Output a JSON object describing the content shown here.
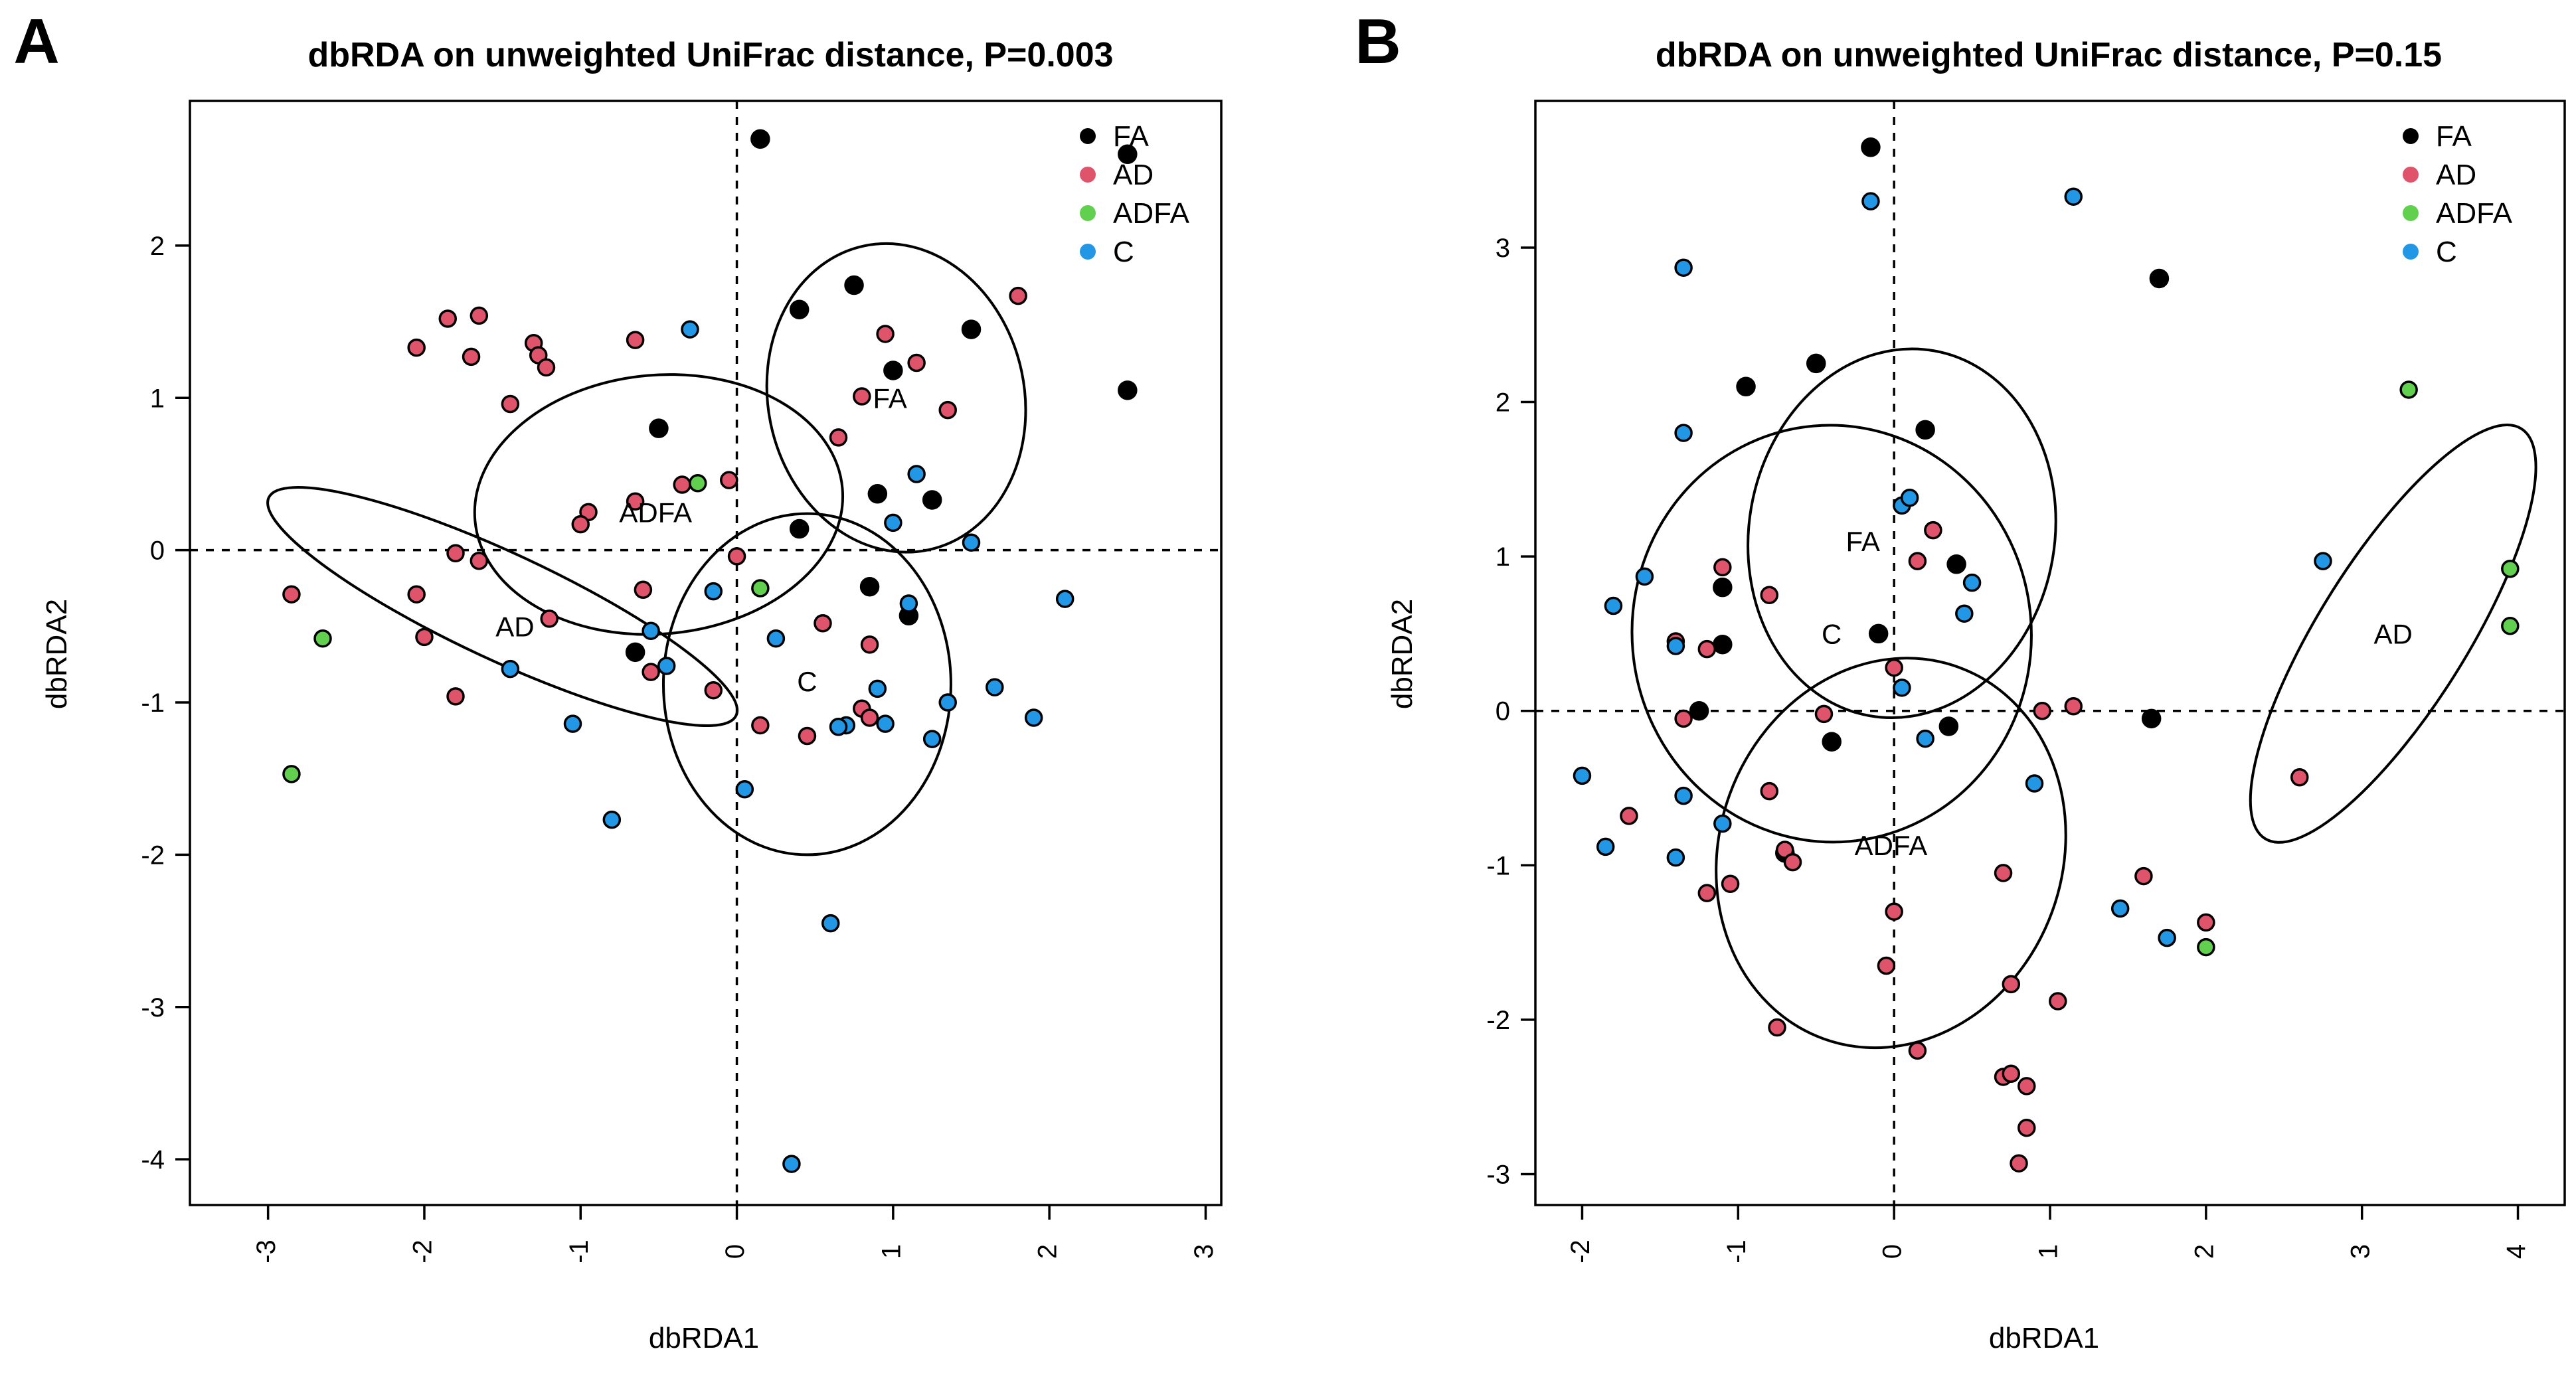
{
  "colors": {
    "FA": "#000000",
    "AD": "#DF536B",
    "ADFA": "#61D04F",
    "C": "#2297E6"
  },
  "chart_data": [
    {
      "type": "scatter",
      "panel_label": "A",
      "title": "dbRDA on unweighted UniFrac distance, P=0.003",
      "xlabel": "dbRDA1",
      "ylabel": "dbRDA2",
      "xlim": [
        -3.5,
        3.1
      ],
      "ylim": [
        -4.3,
        2.95
      ],
      "xticks": [
        -3,
        -2,
        -1,
        0,
        1,
        2,
        3
      ],
      "xtick_labels": [
        "-3",
        "-2",
        "-1",
        "0",
        "1",
        "2",
        "3"
      ],
      "yticks": [
        -4,
        -3,
        -2,
        -1,
        0,
        1,
        2
      ],
      "ytick_labels": [
        "-4",
        "-3",
        "-2",
        "-1",
        "0",
        "1",
        "2"
      ],
      "legend": [
        "FA",
        "AD",
        "ADFA",
        "C"
      ],
      "legend_position": "top-right",
      "series": [
        {
          "name": "FA",
          "points": [
            [
              0.15,
              2.7
            ],
            [
              2.5,
              2.6
            ],
            [
              0.4,
              1.58
            ],
            [
              0.75,
              1.74
            ],
            [
              1.5,
              1.45
            ],
            [
              1.0,
              1.18
            ],
            [
              2.5,
              1.05
            ],
            [
              -0.5,
              0.8
            ],
            [
              0.9,
              0.37
            ],
            [
              1.25,
              0.33
            ],
            [
              0.4,
              0.14
            ],
            [
              0.85,
              -0.24
            ],
            [
              1.1,
              -0.43
            ],
            [
              -0.65,
              -0.67
            ]
          ]
        },
        {
          "name": "AD",
          "points": [
            [
              -1.85,
              1.52
            ],
            [
              -1.65,
              1.54
            ],
            [
              -2.05,
              1.33
            ],
            [
              -1.7,
              1.27
            ],
            [
              -1.3,
              1.36
            ],
            [
              -1.27,
              1.28
            ],
            [
              -1.22,
              1.2
            ],
            [
              -0.65,
              1.38
            ],
            [
              -1.45,
              0.96
            ],
            [
              0.95,
              1.42
            ],
            [
              1.15,
              1.23
            ],
            [
              1.8,
              1.67
            ],
            [
              0.8,
              1.01
            ],
            [
              1.35,
              0.92
            ],
            [
              0.65,
              0.74
            ],
            [
              -0.35,
              0.43
            ],
            [
              -0.05,
              0.46
            ],
            [
              -0.65,
              0.32
            ],
            [
              -0.95,
              0.25
            ],
            [
              -1.0,
              0.17
            ],
            [
              -1.8,
              -0.02
            ],
            [
              -1.65,
              -0.07
            ],
            [
              -2.85,
              -0.29
            ],
            [
              -2.05,
              -0.29
            ],
            [
              -2.0,
              -0.57
            ],
            [
              -1.2,
              -0.45
            ],
            [
              -0.6,
              -0.26
            ],
            [
              -0.55,
              -0.8
            ],
            [
              -0.15,
              -0.92
            ],
            [
              0.15,
              -1.15
            ],
            [
              0.45,
              -1.22
            ],
            [
              0.0,
              -0.04
            ],
            [
              0.55,
              -0.48
            ],
            [
              0.85,
              -0.62
            ],
            [
              0.8,
              -1.04
            ],
            [
              0.85,
              -1.1
            ],
            [
              -1.8,
              -0.96
            ]
          ]
        },
        {
          "name": "ADFA",
          "points": [
            [
              -0.25,
              0.44
            ],
            [
              0.15,
              -0.25
            ],
            [
              -2.65,
              -0.58
            ],
            [
              -2.85,
              -1.47
            ]
          ]
        },
        {
          "name": "C",
          "points": [
            [
              -0.3,
              1.45
            ],
            [
              1.15,
              0.5
            ],
            [
              1.0,
              0.18
            ],
            [
              1.5,
              0.05
            ],
            [
              2.1,
              -0.32
            ],
            [
              1.1,
              -0.35
            ],
            [
              0.25,
              -0.58
            ],
            [
              -0.15,
              -0.27
            ],
            [
              -0.55,
              -0.53
            ],
            [
              -0.45,
              -0.76
            ],
            [
              -1.45,
              -0.78
            ],
            [
              -1.05,
              -1.14
            ],
            [
              0.9,
              -0.91
            ],
            [
              1.35,
              -1.0
            ],
            [
              1.65,
              -0.9
            ],
            [
              1.9,
              -1.1
            ],
            [
              0.7,
              -1.15
            ],
            [
              0.65,
              -1.16
            ],
            [
              0.95,
              -1.14
            ],
            [
              1.25,
              -1.24
            ],
            [
              0.05,
              -1.57
            ],
            [
              -0.8,
              -1.77
            ],
            [
              0.6,
              -2.45
            ],
            [
              0.35,
              -4.03
            ]
          ]
        }
      ],
      "ellipses": [
        {
          "label": "FA",
          "cx": 1.02,
          "cy": 1.0,
          "rx": 0.82,
          "ry": 1.02,
          "angle": 12,
          "label_at": [
            0.98,
            1.0
          ]
        },
        {
          "label": "ADFA",
          "cx": -0.5,
          "cy": 0.3,
          "rx": 1.18,
          "ry": 0.85,
          "angle": 5,
          "label_at": [
            -0.52,
            0.25
          ]
        },
        {
          "label": "AD",
          "cx": -1.5,
          "cy": -0.37,
          "rx": 1.65,
          "ry": 0.35,
          "angle": -25,
          "label_at": [
            -1.42,
            -0.5
          ]
        },
        {
          "label": "C",
          "cx": 0.45,
          "cy": -0.88,
          "rx": 0.92,
          "ry": 1.12,
          "angle": 0,
          "label_at": [
            0.45,
            -0.86
          ]
        }
      ]
    },
    {
      "type": "scatter",
      "panel_label": "B",
      "title": "dbRDA on unweighted UniFrac distance, P=0.15",
      "xlabel": "dbRDA1",
      "ylabel": "dbRDA2",
      "xlim": [
        -2.3,
        4.3
      ],
      "ylim": [
        -3.2,
        3.95
      ],
      "xticks": [
        -2,
        -1,
        0,
        1,
        2,
        3,
        4
      ],
      "xtick_labels": [
        "-2",
        "-1",
        "0",
        "1",
        "2",
        "3",
        "4"
      ],
      "yticks": [
        -3,
        -2,
        -1,
        0,
        1,
        2,
        3
      ],
      "ytick_labels": [
        "-3",
        "-2",
        "-1",
        "0",
        "1",
        "2",
        "3"
      ],
      "legend": [
        "FA",
        "AD",
        "ADFA",
        "C"
      ],
      "legend_position": "top-right",
      "series": [
        {
          "name": "FA",
          "points": [
            [
              -0.15,
              3.65
            ],
            [
              1.7,
              2.8
            ],
            [
              -0.5,
              2.25
            ],
            [
              -0.95,
              2.1
            ],
            [
              0.2,
              1.82
            ],
            [
              -1.1,
              0.8
            ],
            [
              0.4,
              0.95
            ],
            [
              -1.1,
              0.43
            ],
            [
              -0.1,
              0.5
            ],
            [
              -1.25,
              0.0
            ],
            [
              0.35,
              -0.1
            ],
            [
              -0.4,
              -0.2
            ],
            [
              1.65,
              -0.05
            ],
            [
              -0.7,
              -0.92
            ]
          ]
        },
        {
          "name": "AD",
          "points": [
            [
              -1.1,
              0.93
            ],
            [
              -0.8,
              0.75
            ],
            [
              -1.4,
              0.45
            ],
            [
              -1.2,
              0.4
            ],
            [
              0.0,
              0.28
            ],
            [
              0.25,
              1.17
            ],
            [
              0.15,
              0.97
            ],
            [
              -1.35,
              -0.05
            ],
            [
              -0.45,
              -0.02
            ],
            [
              0.95,
              0.0
            ],
            [
              1.15,
              0.03
            ],
            [
              -0.8,
              -0.52
            ],
            [
              -0.7,
              -0.9
            ],
            [
              -0.65,
              -0.98
            ],
            [
              -1.7,
              -0.68
            ],
            [
              -1.2,
              -1.18
            ],
            [
              -1.05,
              -1.12
            ],
            [
              0.0,
              -1.3
            ],
            [
              0.7,
              -1.05
            ],
            [
              1.6,
              -1.07
            ],
            [
              2.0,
              -1.37
            ],
            [
              -0.05,
              -1.65
            ],
            [
              0.75,
              -1.77
            ],
            [
              1.05,
              -1.88
            ],
            [
              -0.75,
              -2.05
            ],
            [
              0.15,
              -2.2
            ],
            [
              0.7,
              -2.37
            ],
            [
              0.75,
              -2.35
            ],
            [
              0.85,
              -2.43
            ],
            [
              0.85,
              -2.7
            ],
            [
              0.8,
              -2.93
            ],
            [
              2.6,
              -0.43
            ]
          ]
        },
        {
          "name": "ADFA",
          "points": [
            [
              3.3,
              2.08
            ],
            [
              3.95,
              0.92
            ],
            [
              3.95,
              0.55
            ],
            [
              2.0,
              -1.53
            ]
          ]
        },
        {
          "name": "C",
          "points": [
            [
              -0.15,
              3.3
            ],
            [
              1.15,
              3.33
            ],
            [
              -1.35,
              2.87
            ],
            [
              -1.35,
              1.8
            ],
            [
              0.05,
              1.33
            ],
            [
              0.1,
              1.38
            ],
            [
              0.5,
              0.83
            ],
            [
              0.45,
              0.63
            ],
            [
              -1.6,
              0.87
            ],
            [
              -1.8,
              0.68
            ],
            [
              -1.4,
              0.42
            ],
            [
              0.05,
              0.15
            ],
            [
              0.2,
              -0.18
            ],
            [
              0.9,
              -0.47
            ],
            [
              -2.0,
              -0.42
            ],
            [
              -1.35,
              -0.55
            ],
            [
              -1.1,
              -0.73
            ],
            [
              -1.85,
              -0.88
            ],
            [
              -1.4,
              -0.95
            ],
            [
              2.75,
              0.97
            ],
            [
              1.45,
              -1.28
            ],
            [
              1.75,
              -1.47
            ]
          ]
        }
      ],
      "ellipses": [
        {
          "label": "FA",
          "cx": 0.05,
          "cy": 1.15,
          "rx": 0.98,
          "ry": 1.2,
          "angle": -10,
          "label_at": [
            -0.2,
            1.1
          ]
        },
        {
          "label": "C",
          "cx": -0.4,
          "cy": 0.5,
          "rx": 1.28,
          "ry": 1.35,
          "angle": 5,
          "label_at": [
            -0.4,
            0.5
          ]
        },
        {
          "label": "ADFA",
          "cx": -0.02,
          "cy": -0.92,
          "rx": 1.1,
          "ry": 1.28,
          "angle": -20,
          "label_at": [
            -0.02,
            -0.87
          ]
        },
        {
          "label": "AD",
          "cx": 3.2,
          "cy": 0.5,
          "rx": 1.55,
          "ry": 0.48,
          "angle": 58,
          "label_at": [
            3.2,
            0.5
          ]
        }
      ]
    }
  ]
}
